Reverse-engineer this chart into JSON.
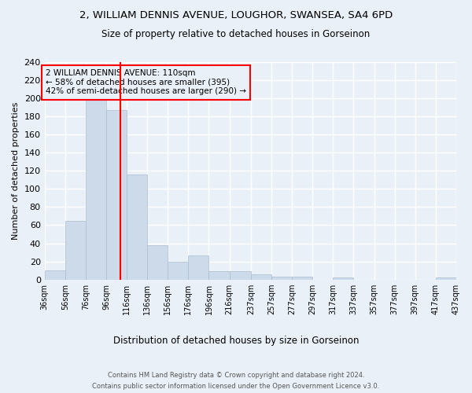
{
  "title": "2, WILLIAM DENNIS AVENUE, LOUGHOR, SWANSEA, SA4 6PD",
  "subtitle": "Size of property relative to detached houses in Gorseinon",
  "xlabel": "Distribution of detached houses by size in Gorseinon",
  "ylabel": "Number of detached properties",
  "bar_color": "#ccdaea",
  "bar_edge_color": "#aabdd0",
  "bg_color": "#eaf0f8",
  "grid_color": "white",
  "vline_x": 110,
  "vline_color": "red",
  "annotation_text": "2 WILLIAM DENNIS AVENUE: 110sqm\n← 58% of detached houses are smaller (395)\n42% of semi-detached houses are larger (290) →",
  "footnote1": "Contains HM Land Registry data © Crown copyright and database right 2024.",
  "footnote2": "Contains public sector information licensed under the Open Government Licence v3.0.",
  "bin_edges": [
    36,
    56,
    76,
    96,
    116,
    136,
    156,
    176,
    196,
    216,
    237,
    257,
    277,
    297,
    317,
    337,
    357,
    377,
    397,
    417,
    437
  ],
  "bin_labels": [
    "36sqm",
    "56sqm",
    "76sqm",
    "96sqm",
    "116sqm",
    "136sqm",
    "156sqm",
    "176sqm",
    "196sqm",
    "216sqm",
    "237sqm",
    "257sqm",
    "277sqm",
    "297sqm",
    "317sqm",
    "337sqm",
    "357sqm",
    "377sqm",
    "397sqm",
    "417sqm",
    "437sqm"
  ],
  "counts": [
    10,
    65,
    200,
    187,
    116,
    38,
    20,
    27,
    9,
    9,
    6,
    3,
    3,
    0,
    2,
    0,
    0,
    0,
    0,
    2
  ],
  "ylim": [
    0,
    240
  ],
  "yticks": [
    0,
    20,
    40,
    60,
    80,
    100,
    120,
    140,
    160,
    180,
    200,
    220,
    240
  ]
}
